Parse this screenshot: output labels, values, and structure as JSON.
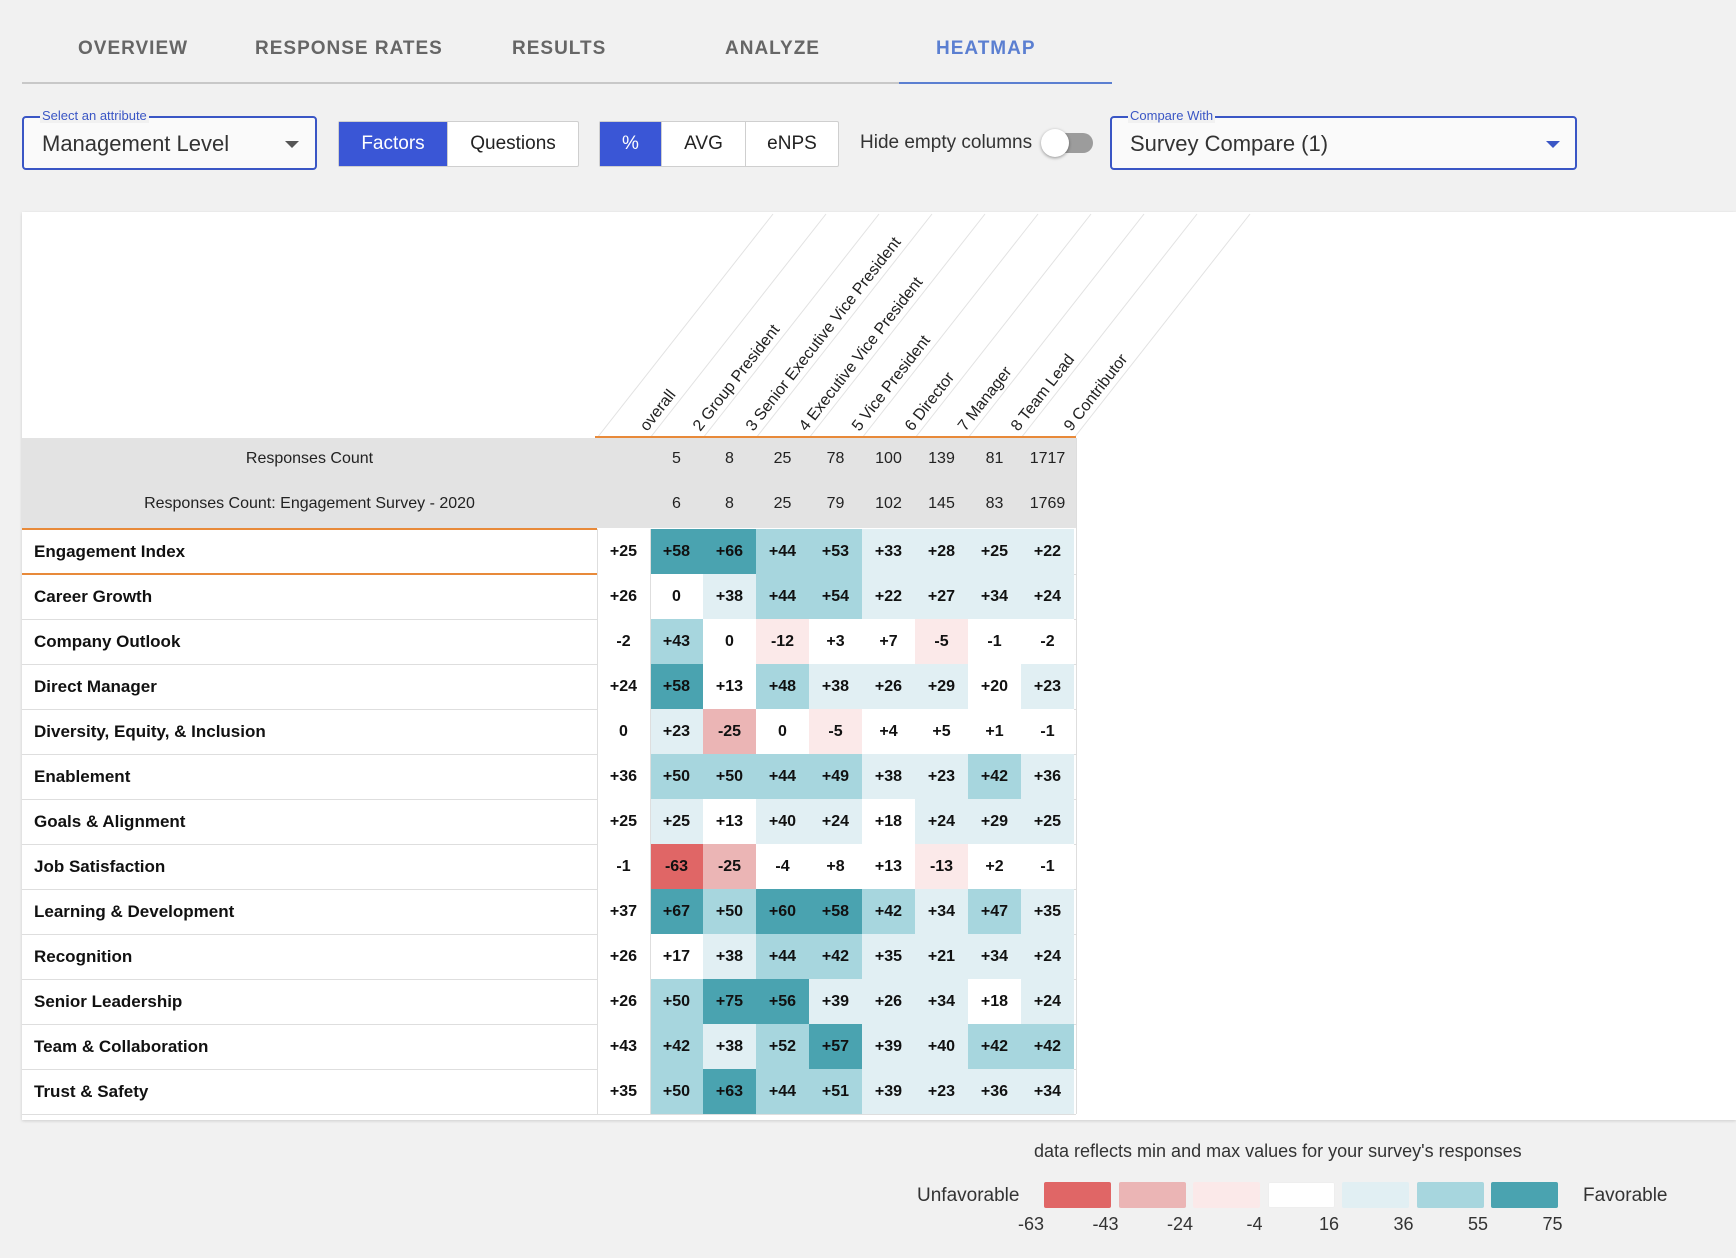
{
  "tabs": [
    {
      "label": "OVERVIEW",
      "active": false
    },
    {
      "label": "RESPONSE RATES",
      "active": false
    },
    {
      "label": "RESULTS",
      "active": false
    },
    {
      "label": "ANALYZE",
      "active": false
    },
    {
      "label": "HEATMAP",
      "active": true
    }
  ],
  "controls": {
    "attribute": {
      "legend": "Select an attribute",
      "value": "Management Level"
    },
    "view_toggle": [
      "Factors",
      "Questions"
    ],
    "view_selected": "Factors",
    "metric_toggle": [
      "%",
      "AVG",
      "eNPS"
    ],
    "metric_selected": "%",
    "hide_empty_label": "Hide empty columns",
    "hide_empty_on": false,
    "compare": {
      "legend": "Compare With",
      "value": "Survey Compare (1)"
    }
  },
  "heatmap": {
    "columns": [
      "overall",
      "2 Group President",
      "3 Senior Executive Vice President",
      "4 Executive Vice President",
      "5 Vice President",
      "6 Director",
      "7 Manager",
      "8 Team Lead",
      "9 Contributor"
    ],
    "count_rows": [
      {
        "label": "Responses Count",
        "values": [
          "",
          "5",
          "8",
          "25",
          "78",
          "100",
          "139",
          "81",
          "1717"
        ]
      },
      {
        "label": "Responses Count: Engagement Survey - 2020",
        "values": [
          "",
          "6",
          "8",
          "25",
          "79",
          "102",
          "145",
          "83",
          "1769"
        ]
      }
    ],
    "rows": [
      {
        "label": "Engagement Index",
        "values": [
          "+25",
          "+58",
          "+66",
          "+44",
          "+53",
          "+33",
          "+28",
          "+25",
          "+22"
        ]
      },
      {
        "label": "Career Growth",
        "values": [
          "+26",
          "0",
          "+38",
          "+44",
          "+54",
          "+22",
          "+27",
          "+34",
          "+24"
        ]
      },
      {
        "label": "Company Outlook",
        "values": [
          "-2",
          "+43",
          "0",
          "-12",
          "+3",
          "+7",
          "-5",
          "-1",
          "-2"
        ]
      },
      {
        "label": "Direct Manager",
        "values": [
          "+24",
          "+58",
          "+13",
          "+48",
          "+38",
          "+26",
          "+29",
          "+20",
          "+23"
        ]
      },
      {
        "label": "Diversity, Equity, & Inclusion",
        "values": [
          "0",
          "+23",
          "-25",
          "0",
          "-5",
          "+4",
          "+5",
          "+1",
          "-1"
        ]
      },
      {
        "label": "Enablement",
        "values": [
          "+36",
          "+50",
          "+50",
          "+44",
          "+49",
          "+38",
          "+23",
          "+42",
          "+36"
        ]
      },
      {
        "label": "Goals & Alignment",
        "values": [
          "+25",
          "+25",
          "+13",
          "+40",
          "+24",
          "+18",
          "+24",
          "+29",
          "+25"
        ]
      },
      {
        "label": "Job Satisfaction",
        "values": [
          "-1",
          "-63",
          "-25",
          "-4",
          "+8",
          "+13",
          "-13",
          "+2",
          "-1"
        ]
      },
      {
        "label": "Learning & Development",
        "values": [
          "+37",
          "+67",
          "+50",
          "+60",
          "+58",
          "+42",
          "+34",
          "+47",
          "+35"
        ]
      },
      {
        "label": "Recognition",
        "values": [
          "+26",
          "+17",
          "+38",
          "+44",
          "+42",
          "+35",
          "+21",
          "+34",
          "+24"
        ]
      },
      {
        "label": "Senior Leadership",
        "values": [
          "+26",
          "+50",
          "+75",
          "+56",
          "+39",
          "+26",
          "+34",
          "+18",
          "+24"
        ]
      },
      {
        "label": "Team & Collaboration",
        "values": [
          "+43",
          "+42",
          "+38",
          "+52",
          "+57",
          "+39",
          "+40",
          "+42",
          "+42"
        ]
      },
      {
        "label": "Trust & Safety",
        "values": [
          "+35",
          "+50",
          "+63",
          "+44",
          "+51",
          "+39",
          "+23",
          "+36",
          "+34"
        ]
      }
    ]
  },
  "legend": {
    "note": "data reflects min and max values for your survey's responses",
    "left_label": "Unfavorable",
    "right_label": "Favorable",
    "colors": [
      "#e06666",
      "#ebb5b5",
      "#fbe9e9",
      "#ffffff",
      "#e1eff3",
      "#a7d6de",
      "#4aa3b0"
    ],
    "ticks": [
      "-63",
      "-43",
      "-24",
      "-4",
      "16",
      "36",
      "55",
      "75"
    ]
  }
}
